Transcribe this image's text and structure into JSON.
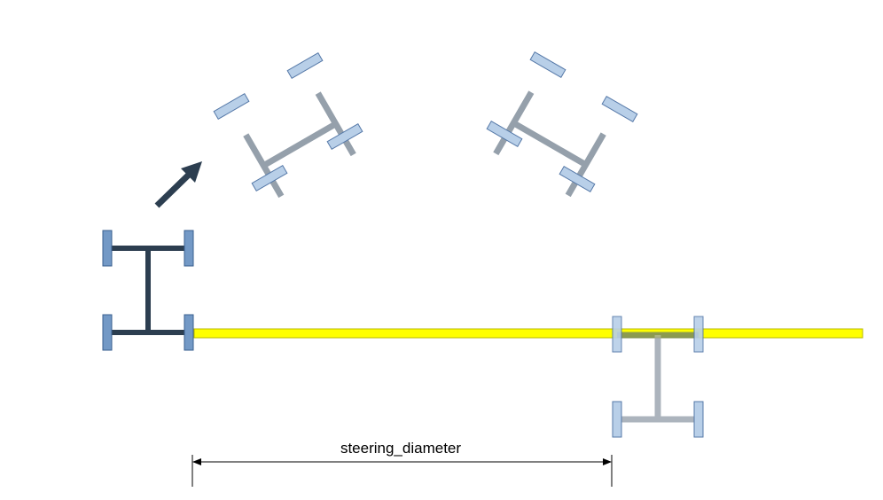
{
  "diagram": {
    "dimension_label": "steering_diameter",
    "colors": {
      "background": "#ffffff",
      "robot_frame_current": "#2c3e50",
      "robot_frame_ghost": "#95a0ab",
      "wheel_current_fill": "#7399c6",
      "wheel_current_stroke": "#3a5f8f",
      "wheel_ghost_fill": "#b8cfe8",
      "wheel_ghost_stroke": "#5679a8",
      "path_fill": "#ffff00",
      "path_stroke": "#b8b800",
      "motion_arrow": "#2c3e50",
      "dimension_line": "#000000"
    },
    "icons": {
      "motion_arrow": "arrow-icon"
    }
  }
}
